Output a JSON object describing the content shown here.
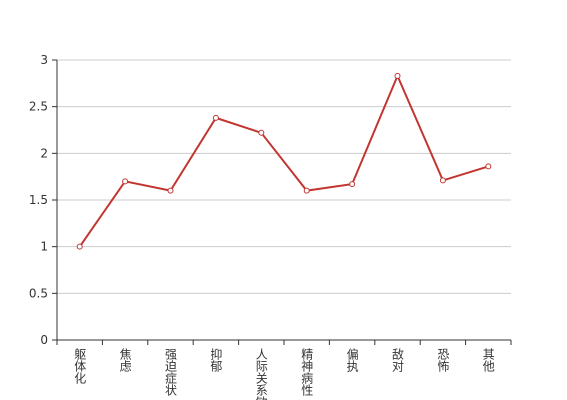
{
  "chart_data": {
    "type": "line",
    "categories": [
      "躯体化",
      "焦虑",
      "强迫症状",
      "抑郁",
      "人际关系敏感",
      "精神病性",
      "偏执",
      "敌对",
      "恐怖",
      "其他"
    ],
    "series": [
      {
        "color": "#c23531",
        "values": [
          1.0,
          1.7,
          1.6,
          2.38,
          2.22,
          1.6,
          1.67,
          2.83,
          1.71,
          1.86
        ]
      }
    ],
    "ylim": [
      0,
      3
    ],
    "yticks": [
      0,
      0.5,
      1,
      1.5,
      2,
      2.5,
      3
    ],
    "grid": true
  }
}
